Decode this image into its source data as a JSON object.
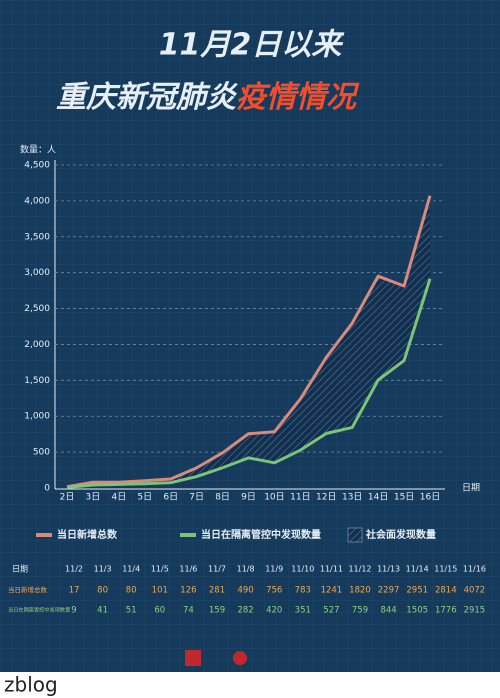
{
  "chart_data": {
    "type": "line",
    "title": "11月2日以来",
    "subtitle": "重庆新冠肺炎",
    "subtitle_highlight": "疫情情况",
    "y_label": "数量：人",
    "x_label": "日期",
    "categories": [
      "2日",
      "3日",
      "4日",
      "5日",
      "6日",
      "7日",
      "8日",
      "9日",
      "10日",
      "11日",
      "12日",
      "13日",
      "14日",
      "15日",
      "16日"
    ],
    "series": [
      {
        "name": "当日新增总数",
        "color": "#d98a7c",
        "values": [
          17,
          80,
          80,
          101,
          126,
          281,
          490,
          756,
          783,
          1241,
          1820,
          2297,
          2951,
          2814,
          4072
        ]
      },
      {
        "name": "当日在隔离管控中发现数量",
        "color": "#7cc576",
        "values": [
          9,
          41,
          51,
          60,
          74,
          159,
          282,
          420,
          351,
          527,
          759,
          844,
          1505,
          1776,
          2915
        ]
      }
    ],
    "area_name": "社会面发现数量",
    "ylim": [
      0,
      4500
    ],
    "yticks": [
      0,
      500,
      {
        "value": 1000,
        "label": "1,000"
      },
      {
        "value": 1500,
        "label": "1,500"
      },
      {
        "value": 2000,
        "label": "2,000"
      },
      {
        "value": 2500,
        "label": "2,500"
      },
      {
        "value": 3000,
        "label": "3,000"
      },
      {
        "value": 3500,
        "label": "3,500"
      },
      {
        "value": 4000,
        "label": "4,000"
      },
      {
        "value": 4500,
        "label": "4,500"
      }
    ],
    "grid": true
  },
  "table": {
    "header": "日期",
    "dates": [
      "11/2",
      "11/3",
      "11/4",
      "11/5",
      "11/6",
      "11/7",
      "11/8",
      "11/9",
      "11/10",
      "11/11",
      "11/12",
      "11/13",
      "11/14",
      "11/15",
      "11/16"
    ],
    "row_labels": [
      "当日新增总数",
      "当日在隔离管控中发现数量"
    ]
  },
  "watermark": "zblog"
}
